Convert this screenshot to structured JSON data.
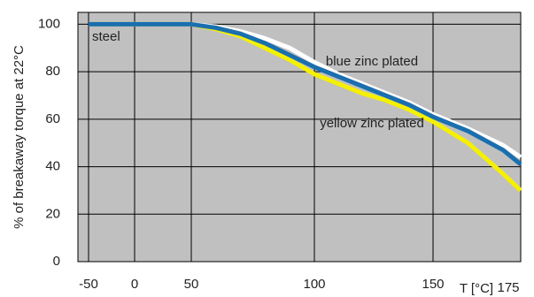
{
  "chart_data": {
    "type": "line",
    "y_label": "% of breakaway torque at 22°C",
    "x_label": "T [°C]",
    "x": [
      -50,
      0,
      50,
      60,
      70,
      80,
      90,
      100,
      110,
      120,
      130,
      140,
      150,
      160,
      170,
      175
    ],
    "series": [
      {
        "name": "blue zinc plated",
        "color": "#ffffff",
        "values": [
          100,
          100,
          100,
          99,
          97,
          94,
          90,
          84,
          79,
          75,
          71,
          67,
          62,
          56,
          49,
          44
        ]
      },
      {
        "name": "yellow zinc plated",
        "color": "#f5f000",
        "values": [
          100,
          100,
          100,
          98,
          95,
          90,
          85,
          79,
          75,
          71,
          68,
          64,
          59,
          50,
          37,
          30
        ]
      },
      {
        "name": "steel",
        "color": "#1a6faf",
        "values": [
          100,
          100,
          100,
          98.5,
          96,
          92,
          87,
          82,
          78,
          74,
          70,
          66,
          61,
          55,
          47,
          41
        ]
      }
    ],
    "xlim": [
      -50,
      175
    ],
    "xticks": [
      -50,
      0,
      50,
      100,
      150,
      175
    ],
    "ylim": [
      0,
      105
    ],
    "yticks": [
      0,
      20,
      40,
      60,
      80,
      100
    ],
    "grid": true
  }
}
